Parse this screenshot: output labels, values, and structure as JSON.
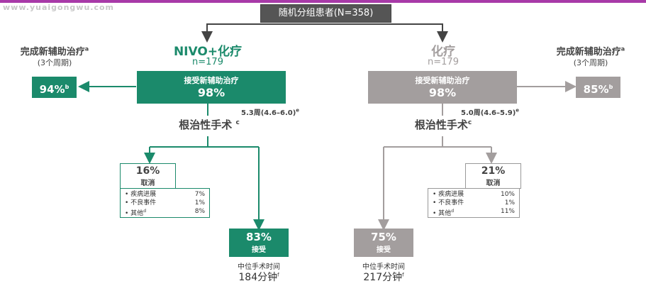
{
  "watermark": "www.yuaigongwu.com",
  "top": {
    "label": "随机分组患者(N=358)"
  },
  "left": {
    "arm_title": "NIVO+化疗",
    "arm_n": "n=179",
    "received_label": "接受新辅助治疗",
    "received_pct": "98%",
    "completed_label": "完成新辅助治疗",
    "completed_sup": "a",
    "completed_sub": "(3个周期)",
    "completed_pct": "94%",
    "completed_pct_sup": "b",
    "duration": "5.3周(4.6–6.0)",
    "duration_sup": "e",
    "surgery_label": "根治性手术",
    "surgery_sup": "c",
    "cancel_pct": "16%",
    "cancel_label": "取消",
    "cancel_reasons": [
      {
        "name": "疾病进展",
        "sup": "",
        "value": "7%"
      },
      {
        "name": "不良事件",
        "sup": "",
        "value": "1%"
      },
      {
        "name": "其他",
        "sup": "d",
        "value": "8%"
      }
    ],
    "accept_pct": "83%",
    "accept_label": "接受",
    "median_label": "中位手术时间",
    "median_value": "184分钟",
    "median_sup": "f"
  },
  "right": {
    "arm_title": "化疗",
    "arm_n": "n=179",
    "received_label": "接受新辅助治疗",
    "received_pct": "98%",
    "completed_label": "完成新辅助治疗",
    "completed_sup": "a",
    "completed_sub": "(3个周期)",
    "completed_pct": "85%",
    "completed_pct_sup": "b",
    "duration": "5.0周(4.6–5.9)",
    "duration_sup": "e",
    "surgery_label": "根治性手术",
    "surgery_sup": "c",
    "cancel_pct": "21%",
    "cancel_label": "取消",
    "cancel_reasons": [
      {
        "name": "疾病进展",
        "sup": "",
        "value": "10%"
      },
      {
        "name": "不良事件",
        "sup": "",
        "value": "1%"
      },
      {
        "name": "其他",
        "sup": "d",
        "value": "11%"
      }
    ],
    "accept_pct": "75%",
    "accept_label": "接受",
    "median_label": "中位手术时间",
    "median_value": "217分钟",
    "median_sup": "f"
  },
  "colors": {
    "green": "#1b8a6b",
    "grey": "#a39e9e",
    "dark": "#555555",
    "accent_bar": "#a83aa8"
  }
}
